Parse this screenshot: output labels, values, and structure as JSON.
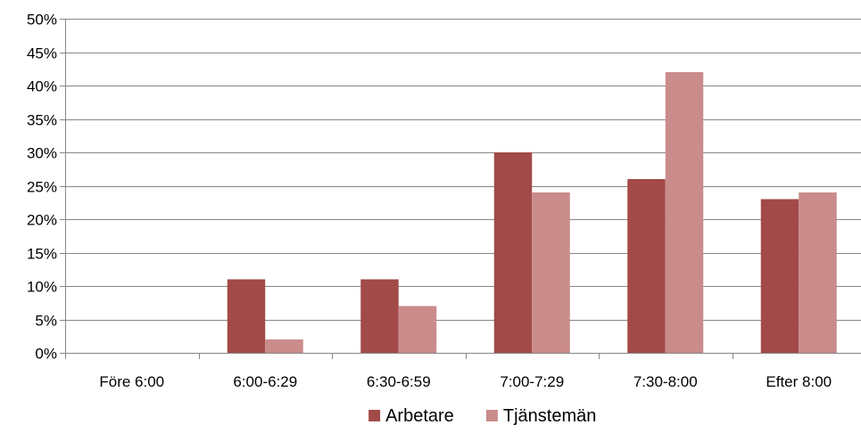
{
  "chart_data": {
    "type": "bar",
    "title": "",
    "xlabel": "",
    "ylabel": "",
    "categories": [
      "Före 6:00",
      "6:00-6:29",
      "6:30-6:59",
      "7:00-7:29",
      "7:30-8:00",
      "Efter 8:00"
    ],
    "series": [
      {
        "name": "Arbetare",
        "values": [
          0,
          11,
          11,
          30,
          26,
          23
        ],
        "color": "#A24A48"
      },
      {
        "name": "Tjänstemän",
        "values": [
          0,
          2,
          7,
          24,
          42,
          24
        ],
        "color": "#C98C8B"
      }
    ],
    "ylim": [
      0,
      50
    ],
    "ytick_step": 5,
    "y_tick_format": "percent",
    "grid": true,
    "legend_position": "bottom"
  }
}
